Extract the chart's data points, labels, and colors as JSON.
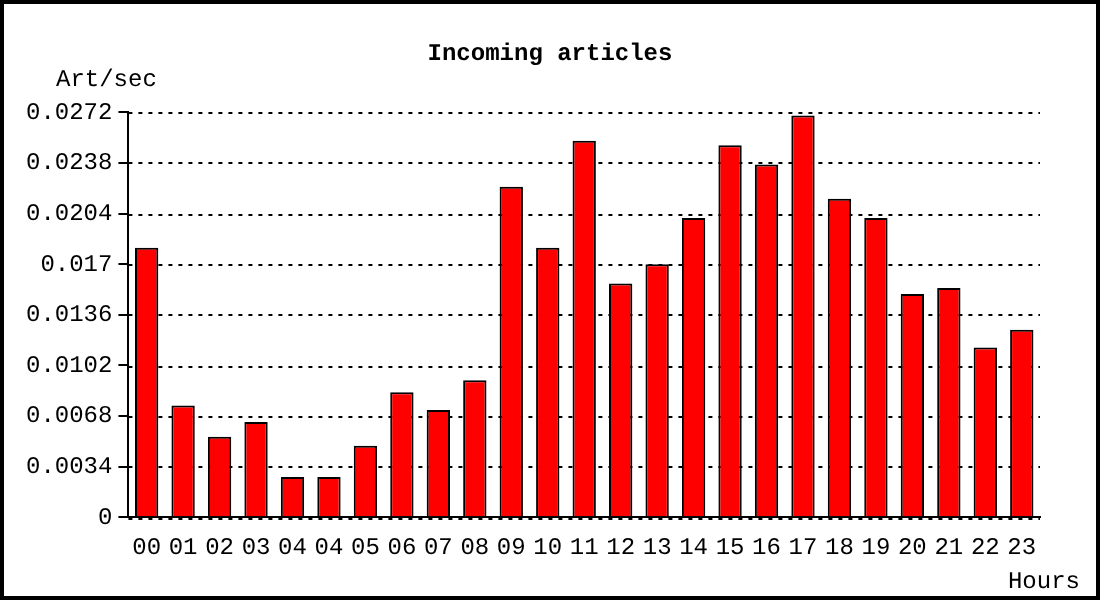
{
  "chart_data": {
    "type": "bar",
    "title": "Incoming articles",
    "ylabel": "Art/sec",
    "xlabel": "Hours",
    "categories": [
      "00",
      "01",
      "02",
      "03",
      "04",
      "04",
      "05",
      "06",
      "07",
      "08",
      "09",
      "10",
      "11",
      "12",
      "13",
      "14",
      "15",
      "16",
      "17",
      "18",
      "19",
      "20",
      "21",
      "22",
      "23"
    ],
    "values": [
      0.0181,
      0.0075,
      0.0054,
      0.0064,
      0.0027,
      0.0027,
      0.0048,
      0.0084,
      0.0072,
      0.0092,
      0.0222,
      0.0181,
      0.0253,
      0.0157,
      0.017,
      0.0201,
      0.025,
      0.0237,
      0.027,
      0.0214,
      0.0201,
      0.015,
      0.0154,
      0.0114,
      0.0126
    ],
    "color": "#ff0000",
    "ylim": [
      0,
      0.0272
    ],
    "yticks": [
      0,
      0.0034,
      0.0068,
      0.0102,
      0.0136,
      0.017,
      0.0204,
      0.0238,
      0.0272
    ],
    "grid": "y",
    "legend": false
  }
}
